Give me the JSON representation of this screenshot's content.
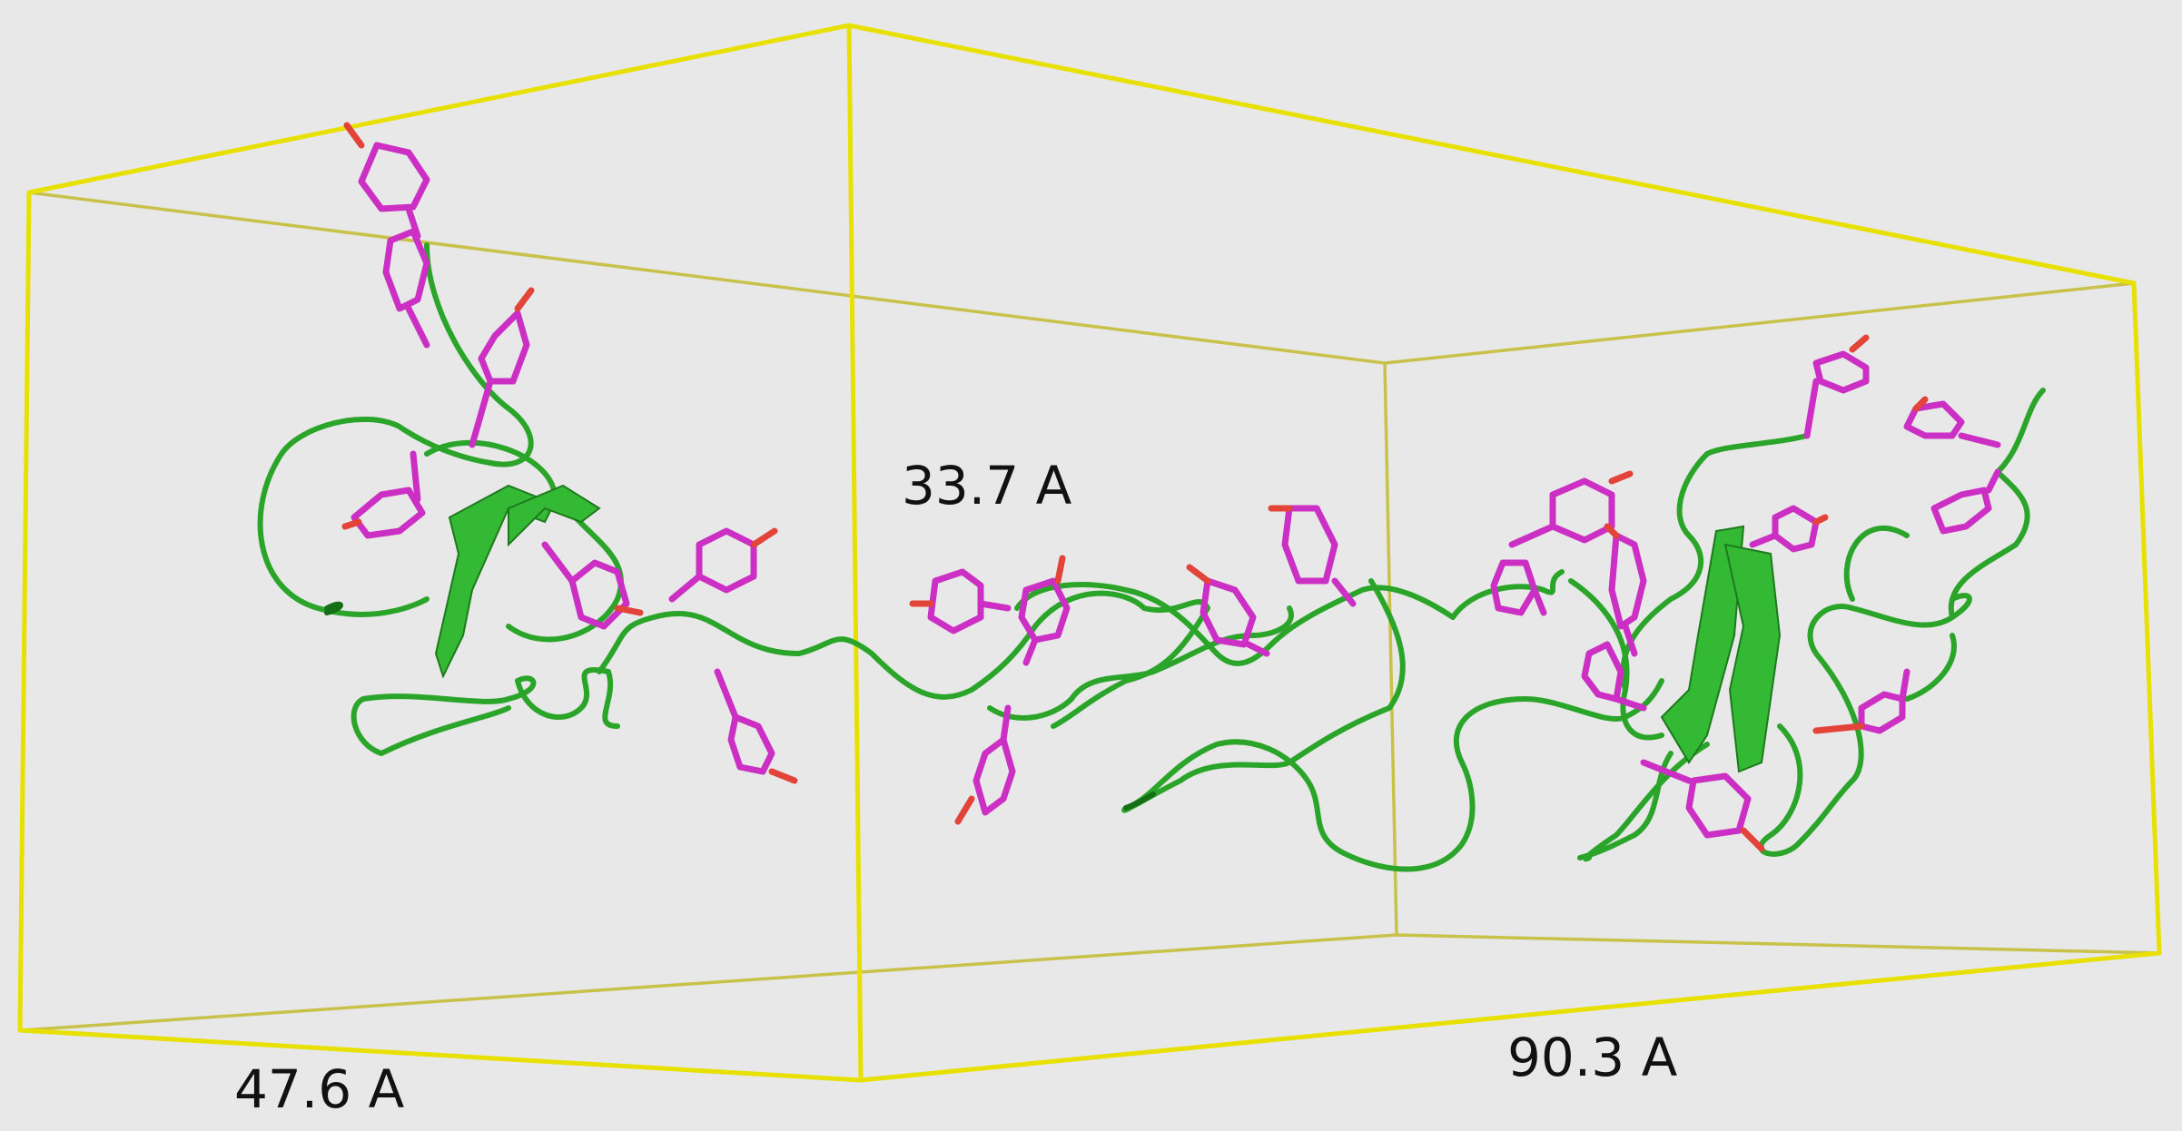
{
  "labels": {
    "height": "33.7 A",
    "depth": "47.6 A",
    "width": "90.3 A"
  },
  "colors": {
    "box": "#e8e000",
    "backbone": "#2aa52a",
    "side_chains": "#cc2fc4",
    "oxygen": "#e2443a",
    "background": "#e8e8e8"
  }
}
